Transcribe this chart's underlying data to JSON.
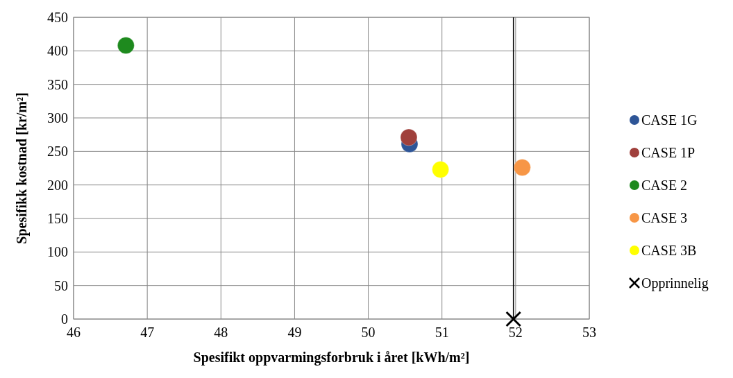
{
  "chart_data": {
    "type": "scatter",
    "xlabel": "Spesifikt oppvarmingsforbruk i året [kWh/m²]",
    "ylabel": "Spesifikk kostnad [kr/m²]",
    "xlim": [
      46,
      53
    ],
    "xticks": [
      46,
      47,
      48,
      49,
      50,
      51,
      52,
      53
    ],
    "ylim": [
      0,
      450
    ],
    "yticks": [
      0,
      50,
      100,
      150,
      200,
      250,
      300,
      350,
      400,
      450
    ],
    "grid": true,
    "legend": "right",
    "marker": "circle",
    "ref_lines": [
      {
        "axis": "x",
        "value": 51.97,
        "color": "#000000"
      }
    ],
    "series": [
      {
        "name": "CASE 1G",
        "color": "#2e5597",
        "x": [
          50.56
        ],
        "values": [
          261
        ]
      },
      {
        "name": "CASE 1P",
        "color": "#a0403c",
        "x": [
          50.55
        ],
        "values": [
          271
        ]
      },
      {
        "name": "CASE 2",
        "color": "#1e8a1e",
        "x": [
          46.71
        ],
        "values": [
          408
        ]
      },
      {
        "name": "CASE 3",
        "color": "#f79646",
        "x": [
          52.09
        ],
        "values": [
          226
        ]
      },
      {
        "name": "CASE 3B",
        "color": "#ffff00",
        "x": [
          50.98
        ],
        "values": [
          223
        ]
      },
      {
        "name": "Opprinnelig",
        "color": "#000000",
        "x": [
          51.97
        ],
        "values": [
          0
        ],
        "marker": "cross"
      }
    ]
  }
}
